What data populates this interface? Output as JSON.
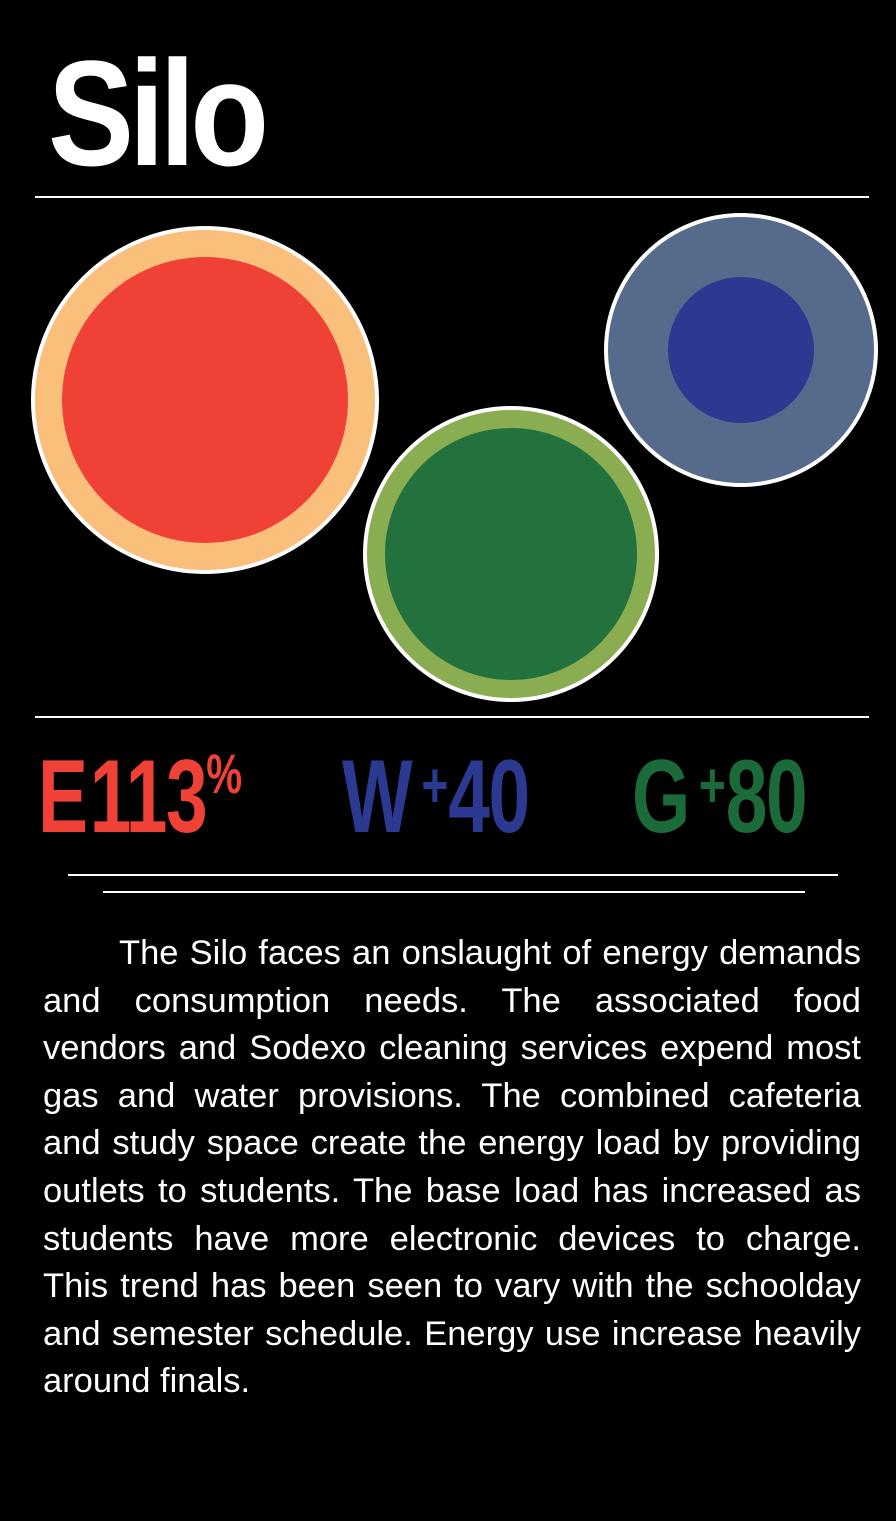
{
  "title": "Silo",
  "colors": {
    "background": "#000000",
    "energy": "#ef4136",
    "energy_ring": "#fbbf7c",
    "water": "#2b3990",
    "water_ring": "#566b8c",
    "gas": "#23723d",
    "gas_ring": "#8aad52",
    "stat_gas": "#1b6b3a"
  },
  "stats": {
    "energy": {
      "letter": "E",
      "value": "113",
      "unit": "%"
    },
    "water": {
      "letter": "W",
      "sign": "+",
      "value": "40"
    },
    "gas": {
      "letter": "G",
      "sign": "+",
      "value": "80"
    }
  },
  "description": "The Silo faces an onslaught of energy demands and consumption needs. The associated food vendors and Sodexo cleaning services expend most gas and water provisions. The combined cafeteria and study space create the energy load by providing outlets to students. The base load has increased as students have more electronic devices to charge. This trend has been seen to vary with the schoolday and semester schedule. Energy use increase heavily around finals."
}
